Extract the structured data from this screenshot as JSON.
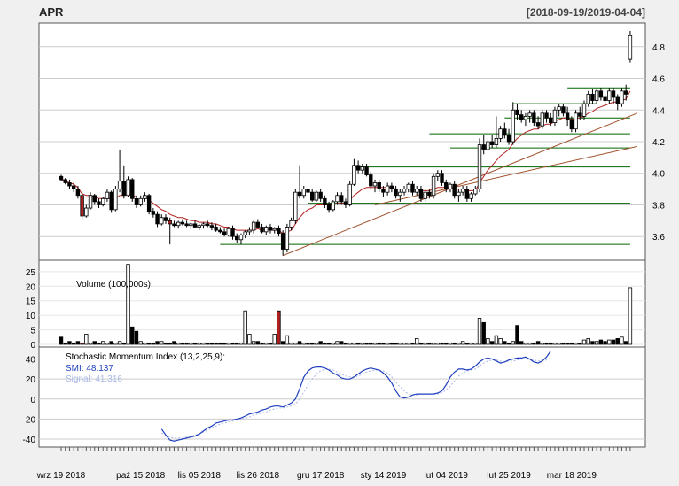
{
  "header": {
    "symbol": "APR",
    "date_range": "[2018-09-19/2019-04-04]"
  },
  "colors": {
    "background": "#f0f0f0",
    "panel_bg": "#ffffff",
    "grid": "#c8c8c8",
    "candle_up": "#ffffff",
    "candle_down": "#000000",
    "candle_highlight": "#b22222",
    "ema": "#b22222",
    "trend": "#a0522d",
    "support": "#006400",
    "smi": "#1f3fbf",
    "signal": "#a9b8e6"
  },
  "x_axis": {
    "tick_labels": [
      "wrz 19 2018",
      "paź 15 2018",
      "lis 05 2018",
      "lis 26 2018",
      "gru 17 2018",
      "sty 14 2019",
      "lut 04 2019",
      "lut 25 2019",
      "mar 18 2019"
    ]
  },
  "price_panel": {
    "ylim": [
      3.45,
      4.95
    ],
    "y_ticks": [
      "4.8",
      "4.6",
      "4.4",
      "4.2",
      "4.0",
      "3.8",
      "3.6"
    ]
  },
  "volume_panel": {
    "label": "Volume (100,000s):",
    "ylim": [
      0,
      28
    ],
    "y_ticks": [
      "25",
      "20",
      "15",
      "10",
      "5",
      "0"
    ]
  },
  "smi_panel": {
    "label": "Stochastic Momentum Index (13,2,25,9):",
    "smi_label": "SMI: 48.137",
    "signal_label": "Signal: 41.316",
    "ylim": [
      -48,
      52
    ],
    "y_ticks": [
      "40",
      "20",
      "0",
      "-20",
      "-40"
    ]
  },
  "chart_data": {
    "type": "candlestick",
    "n_bars": 137,
    "candles": [
      [
        3.98,
        3.99,
        3.95,
        3.96
      ],
      [
        3.96,
        3.97,
        3.93,
        3.94
      ],
      [
        3.94,
        3.96,
        3.9,
        3.92
      ],
      [
        3.92,
        3.94,
        3.88,
        3.9
      ],
      [
        3.9,
        3.92,
        3.84,
        3.86
      ],
      [
        3.86,
        3.88,
        3.7,
        3.73
      ],
      [
        3.73,
        3.8,
        3.72,
        3.78
      ],
      [
        3.78,
        3.88,
        3.77,
        3.86
      ],
      [
        3.86,
        3.87,
        3.8,
        3.82
      ],
      [
        3.82,
        3.84,
        3.78,
        3.8
      ],
      [
        3.8,
        3.85,
        3.79,
        3.84
      ],
      [
        3.84,
        3.9,
        3.82,
        3.88
      ],
      [
        3.88,
        3.89,
        3.75,
        3.77
      ],
      [
        3.77,
        3.92,
        3.76,
        3.9
      ],
      [
        3.9,
        4.15,
        3.88,
        3.95
      ],
      [
        3.95,
        4.05,
        3.84,
        3.86
      ],
      [
        3.86,
        3.98,
        3.85,
        3.96
      ],
      [
        3.96,
        3.97,
        3.82,
        3.84
      ],
      [
        3.84,
        3.86,
        3.78,
        3.8
      ],
      [
        3.8,
        3.86,
        3.79,
        3.84
      ],
      [
        3.84,
        3.88,
        3.82,
        3.86
      ],
      [
        3.86,
        3.87,
        3.74,
        3.76
      ],
      [
        3.76,
        3.78,
        3.72,
        3.74
      ],
      [
        3.74,
        3.76,
        3.66,
        3.68
      ],
      [
        3.68,
        3.74,
        3.67,
        3.72
      ],
      [
        3.72,
        3.74,
        3.68,
        3.7
      ],
      [
        3.7,
        3.72,
        3.55,
        3.68
      ],
      [
        3.68,
        3.7,
        3.66,
        3.67
      ],
      [
        3.67,
        3.7,
        3.65,
        3.69
      ],
      [
        3.69,
        3.71,
        3.67,
        3.68
      ],
      [
        3.68,
        3.7,
        3.66,
        3.67
      ],
      [
        3.67,
        3.69,
        3.65,
        3.68
      ],
      [
        3.68,
        3.7,
        3.66,
        3.66
      ],
      [
        3.66,
        3.68,
        3.64,
        3.67
      ],
      [
        3.67,
        3.69,
        3.65,
        3.68
      ],
      [
        3.68,
        3.7,
        3.66,
        3.67
      ],
      [
        3.67,
        3.69,
        3.64,
        3.66
      ],
      [
        3.66,
        3.68,
        3.63,
        3.64
      ],
      [
        3.64,
        3.66,
        3.62,
        3.63
      ],
      [
        3.63,
        3.65,
        3.6,
        3.61
      ],
      [
        3.61,
        3.66,
        3.6,
        3.65
      ],
      [
        3.65,
        3.67,
        3.58,
        3.6
      ],
      [
        3.6,
        3.62,
        3.56,
        3.58
      ],
      [
        3.58,
        3.62,
        3.55,
        3.61
      ],
      [
        3.61,
        3.64,
        3.59,
        3.63
      ],
      [
        3.63,
        3.66,
        3.61,
        3.64
      ],
      [
        3.64,
        3.7,
        3.62,
        3.69
      ],
      [
        3.69,
        3.71,
        3.65,
        3.66
      ],
      [
        3.66,
        3.68,
        3.62,
        3.63
      ],
      [
        3.63,
        3.67,
        3.61,
        3.66
      ],
      [
        3.66,
        3.68,
        3.62,
        3.64
      ],
      [
        3.64,
        3.66,
        3.62,
        3.65
      ],
      [
        3.65,
        3.67,
        3.6,
        3.62
      ],
      [
        3.62,
        3.64,
        3.48,
        3.52
      ],
      [
        3.52,
        3.68,
        3.5,
        3.66
      ],
      [
        3.66,
        3.72,
        3.64,
        3.7
      ],
      [
        3.7,
        3.9,
        3.68,
        3.88
      ],
      [
        3.88,
        4.05,
        3.84,
        3.86
      ],
      [
        3.86,
        3.92,
        3.84,
        3.9
      ],
      [
        3.9,
        3.92,
        3.86,
        3.88
      ],
      [
        3.88,
        3.9,
        3.82,
        3.83
      ],
      [
        3.83,
        3.89,
        3.82,
        3.88
      ],
      [
        3.88,
        3.9,
        3.82,
        3.84
      ],
      [
        3.84,
        3.86,
        3.78,
        3.8
      ],
      [
        3.8,
        3.82,
        3.75,
        3.77
      ],
      [
        3.77,
        3.83,
        3.76,
        3.82
      ],
      [
        3.82,
        3.88,
        3.8,
        3.86
      ],
      [
        3.86,
        3.88,
        3.8,
        3.82
      ],
      [
        3.82,
        3.84,
        3.78,
        3.8
      ],
      [
        3.8,
        3.95,
        3.79,
        3.93
      ],
      [
        3.93,
        4.09,
        3.92,
        4.05
      ],
      [
        4.05,
        4.08,
        4.0,
        4.02
      ],
      [
        4.02,
        4.06,
        4.0,
        4.04
      ],
      [
        4.04,
        4.06,
        3.98,
        3.99
      ],
      [
        3.99,
        4.01,
        3.9,
        3.92
      ],
      [
        3.92,
        3.96,
        3.88,
        3.94
      ],
      [
        3.94,
        3.96,
        3.88,
        3.9
      ],
      [
        3.9,
        3.92,
        3.85,
        3.88
      ],
      [
        3.88,
        3.94,
        3.86,
        3.92
      ],
      [
        3.92,
        3.94,
        3.88,
        3.9
      ],
      [
        3.9,
        3.92,
        3.84,
        3.86
      ],
      [
        3.86,
        3.9,
        3.82,
        3.88
      ],
      [
        3.88,
        3.92,
        3.86,
        3.9
      ],
      [
        3.9,
        3.94,
        3.88,
        3.93
      ],
      [
        3.93,
        3.95,
        3.86,
        3.88
      ],
      [
        3.88,
        3.92,
        3.86,
        3.9
      ],
      [
        3.9,
        3.92,
        3.82,
        3.84
      ],
      [
        3.84,
        3.9,
        3.82,
        3.88
      ],
      [
        3.88,
        3.9,
        3.84,
        3.86
      ],
      [
        3.86,
        4.0,
        3.84,
        3.98
      ],
      [
        3.98,
        4.02,
        3.95,
        4.0
      ],
      [
        4.0,
        4.02,
        3.92,
        3.94
      ],
      [
        3.94,
        3.96,
        3.88,
        3.9
      ],
      [
        3.9,
        3.94,
        3.88,
        3.93
      ],
      [
        3.93,
        3.95,
        3.84,
        3.86
      ],
      [
        3.86,
        3.9,
        3.82,
        3.88
      ],
      [
        3.88,
        3.92,
        3.86,
        3.9
      ],
      [
        3.9,
        3.92,
        3.82,
        3.84
      ],
      [
        3.84,
        3.88,
        3.82,
        3.87
      ],
      [
        3.87,
        3.92,
        3.86,
        3.9
      ],
      [
        3.9,
        4.22,
        3.88,
        4.18
      ],
      [
        4.18,
        4.24,
        4.12,
        4.15
      ],
      [
        4.15,
        4.22,
        4.14,
        4.2
      ],
      [
        4.2,
        4.24,
        4.16,
        4.18
      ],
      [
        4.18,
        4.36,
        4.16,
        4.22
      ],
      [
        4.22,
        4.3,
        4.2,
        4.28
      ],
      [
        4.28,
        4.32,
        4.22,
        4.24
      ],
      [
        4.24,
        4.28,
        4.18,
        4.2
      ],
      [
        4.2,
        4.45,
        4.18,
        4.4
      ],
      [
        4.4,
        4.44,
        4.34,
        4.37
      ],
      [
        4.37,
        4.4,
        4.32,
        4.34
      ],
      [
        4.34,
        4.38,
        4.3,
        4.36
      ],
      [
        4.36,
        4.4,
        4.32,
        4.38
      ],
      [
        4.38,
        4.4,
        4.3,
        4.32
      ],
      [
        4.32,
        4.36,
        4.28,
        4.3
      ],
      [
        4.3,
        4.4,
        4.28,
        4.38
      ],
      [
        4.38,
        4.4,
        4.32,
        4.35
      ],
      [
        4.35,
        4.38,
        4.3,
        4.32
      ],
      [
        4.32,
        4.42,
        4.3,
        4.4
      ],
      [
        4.4,
        4.44,
        4.36,
        4.42
      ],
      [
        4.42,
        4.44,
        4.36,
        4.38
      ],
      [
        4.38,
        4.42,
        4.3,
        4.34
      ],
      [
        4.34,
        4.36,
        4.26,
        4.28
      ],
      [
        4.28,
        4.4,
        4.26,
        4.38
      ],
      [
        4.38,
        4.42,
        4.34,
        4.36
      ],
      [
        4.36,
        4.46,
        4.34,
        4.44
      ],
      [
        4.44,
        4.52,
        4.42,
        4.5
      ],
      [
        4.5,
        4.53,
        4.44,
        4.46
      ],
      [
        4.46,
        4.53,
        4.44,
        4.52
      ],
      [
        4.52,
        4.54,
        4.46,
        4.48
      ],
      [
        4.48,
        4.5,
        4.42,
        4.46
      ],
      [
        4.46,
        4.54,
        4.44,
        4.52
      ],
      [
        4.52,
        4.54,
        4.44,
        4.48
      ],
      [
        4.48,
        4.5,
        4.4,
        4.44
      ],
      [
        4.44,
        4.54,
        4.42,
        4.52
      ],
      [
        4.52,
        4.56,
        4.46,
        4.5
      ],
      [
        4.72,
        4.9,
        4.7,
        4.87
      ]
    ],
    "highlight_bars": [
      5,
      26
    ],
    "volume": [
      2.5,
      0.5,
      1,
      0.5,
      1,
      0.5,
      3.5,
      0.5,
      1,
      0.5,
      1,
      0.5,
      1,
      0.5,
      1,
      0.5,
      27.5,
      6,
      4.5,
      1,
      0.5,
      0.5,
      0.5,
      1,
      1,
      0.5,
      0.5,
      1,
      0.5,
      0.5,
      0.5,
      0.5,
      0.5,
      0.5,
      0.5,
      0.5,
      0.5,
      0.5,
      0.5,
      0.5,
      0.5,
      0.5,
      0.5,
      0.5,
      11.5,
      3.5,
      1,
      1,
      0.5,
      0.5,
      0.5,
      3.5,
      11.5,
      1,
      3,
      0.5,
      0.5,
      1,
      0.5,
      0.5,
      0.5,
      0.5,
      1,
      0.5,
      0.5,
      0.5,
      1,
      1,
      0.5,
      0.5,
      0.5,
      0.5,
      0.5,
      0.5,
      0.5,
      0.5,
      0.5,
      0.5,
      0.5,
      0.5,
      0.5,
      0.5,
      0.5,
      0.5,
      0.5,
      2,
      0.5,
      0.5,
      0.5,
      0.5,
      0.5,
      0.5,
      0.5,
      0.5,
      0.5,
      0.5,
      1,
      0.5,
      0.5,
      0.5,
      9,
      7.5,
      2,
      1,
      3,
      2,
      1,
      0.5,
      1,
      6.5,
      1,
      0.5,
      0.5,
      0.5,
      1,
      0.5,
      0.5,
      0.5,
      0.5,
      0.5,
      0.5,
      0.5,
      0.5,
      0.5,
      0.5,
      1.5,
      2,
      1,
      1,
      1.5,
      1,
      1.5,
      1.5,
      2,
      2.5,
      1,
      19.5
    ],
    "smi": [
      -30,
      -36,
      -41,
      -42,
      -41,
      -40,
      -39,
      -38,
      -37,
      -35,
      -32,
      -29,
      -27,
      -24,
      -23,
      -22,
      -21,
      -21,
      -20,
      -19,
      -17,
      -15,
      -14,
      -13,
      -11,
      -10,
      -8,
      -7,
      -7,
      -8,
      -6,
      -4,
      0,
      10,
      22,
      28,
      31,
      32,
      32,
      31,
      29,
      26,
      24,
      21,
      20,
      20,
      22,
      25,
      28,
      30,
      31,
      30,
      29,
      26,
      22,
      16,
      8,
      2,
      1,
      2,
      4,
      5,
      5,
      5,
      5,
      5,
      6,
      8,
      14,
      22,
      27,
      30,
      30,
      29,
      30,
      33,
      37,
      40,
      41,
      40,
      38,
      36,
      37,
      39,
      40,
      41,
      41,
      42,
      40,
      37,
      36,
      38,
      42,
      48
    ],
    "signal": [
      -34,
      -36,
      -38,
      -39,
      -39,
      -39,
      -38,
      -37,
      -36,
      -35,
      -33,
      -31,
      -29,
      -27,
      -25,
      -24,
      -23,
      -22,
      -21,
      -20,
      -19,
      -18,
      -16,
      -15,
      -14,
      -13,
      -11,
      -10,
      -9,
      -9,
      -8,
      -7,
      -5,
      0,
      7,
      14,
      20,
      25,
      28,
      30,
      30,
      29,
      27,
      25,
      23,
      22,
      22,
      23,
      25,
      27,
      28,
      29,
      29,
      28,
      26,
      22,
      17,
      12,
      8,
      5,
      4,
      4,
      5,
      5,
      5,
      5,
      5,
      6,
      9,
      13,
      18,
      23,
      26,
      28,
      29,
      30,
      33,
      36,
      38,
      39,
      39,
      38,
      37,
      38,
      38,
      39,
      40,
      40,
      40,
      39,
      38,
      38,
      39,
      41
    ],
    "ema": [
      3.96,
      3.95,
      3.94,
      3.93,
      3.91,
      3.87,
      3.86,
      3.86,
      3.85,
      3.84,
      3.84,
      3.85,
      3.83,
      3.84,
      3.86,
      3.86,
      3.87,
      3.86,
      3.85,
      3.85,
      3.85,
      3.83,
      3.81,
      3.79,
      3.77,
      3.76,
      3.74,
      3.73,
      3.72,
      3.72,
      3.71,
      3.7,
      3.7,
      3.69,
      3.69,
      3.69,
      3.68,
      3.68,
      3.67,
      3.66,
      3.66,
      3.65,
      3.64,
      3.64,
      3.64,
      3.64,
      3.64,
      3.65,
      3.64,
      3.65,
      3.64,
      3.64,
      3.64,
      3.62,
      3.63,
      3.64,
      3.68,
      3.72,
      3.75,
      3.77,
      3.78,
      3.8,
      3.8,
      3.8,
      3.8,
      3.8,
      3.81,
      3.81,
      3.81,
      3.83,
      3.86,
      3.88,
      3.9,
      3.91,
      3.91,
      3.91,
      3.91,
      3.91,
      3.91,
      3.91,
      3.9,
      3.9,
      3.9,
      3.9,
      3.9,
      3.9,
      3.89,
      3.89,
      3.89,
      3.9,
      3.91,
      3.91,
      3.91,
      3.91,
      3.9,
      3.9,
      3.9,
      3.89,
      3.89,
      3.89,
      3.94,
      3.98,
      4.02,
      4.05,
      4.08,
      4.11,
      4.13,
      4.15,
      4.19,
      4.22,
      4.24,
      4.26,
      4.27,
      4.28,
      4.28,
      4.3,
      4.31,
      4.31,
      4.33,
      4.34,
      4.35,
      4.35,
      4.34,
      4.35,
      4.35,
      4.36,
      4.38,
      4.39,
      4.41,
      4.42,
      4.43,
      4.44,
      4.45,
      4.45,
      4.46,
      4.47,
      4.52
    ],
    "trend_lines": [
      {
        "x0": 53,
        "y0": 3.48,
        "x1": 136,
        "y1": 4.38
      },
      {
        "x0": 75,
        "y0": 3.8,
        "x1": 136,
        "y1": 4.17
      }
    ],
    "support_levels": [
      {
        "x0": 38,
        "x1": 136,
        "y": 3.55
      },
      {
        "x0": 59,
        "x1": 136,
        "y": 3.81
      },
      {
        "x0": 70,
        "x1": 136,
        "y": 4.04
      },
      {
        "x0": 93,
        "x1": 136,
        "y": 4.16
      },
      {
        "x0": 88,
        "x1": 136,
        "y": 4.25
      },
      {
        "x0": 106,
        "x1": 136,
        "y": 4.35
      },
      {
        "x0": 108,
        "x1": 128,
        "y": 4.44
      },
      {
        "x0": 121,
        "x1": 136,
        "y": 4.54
      }
    ]
  }
}
